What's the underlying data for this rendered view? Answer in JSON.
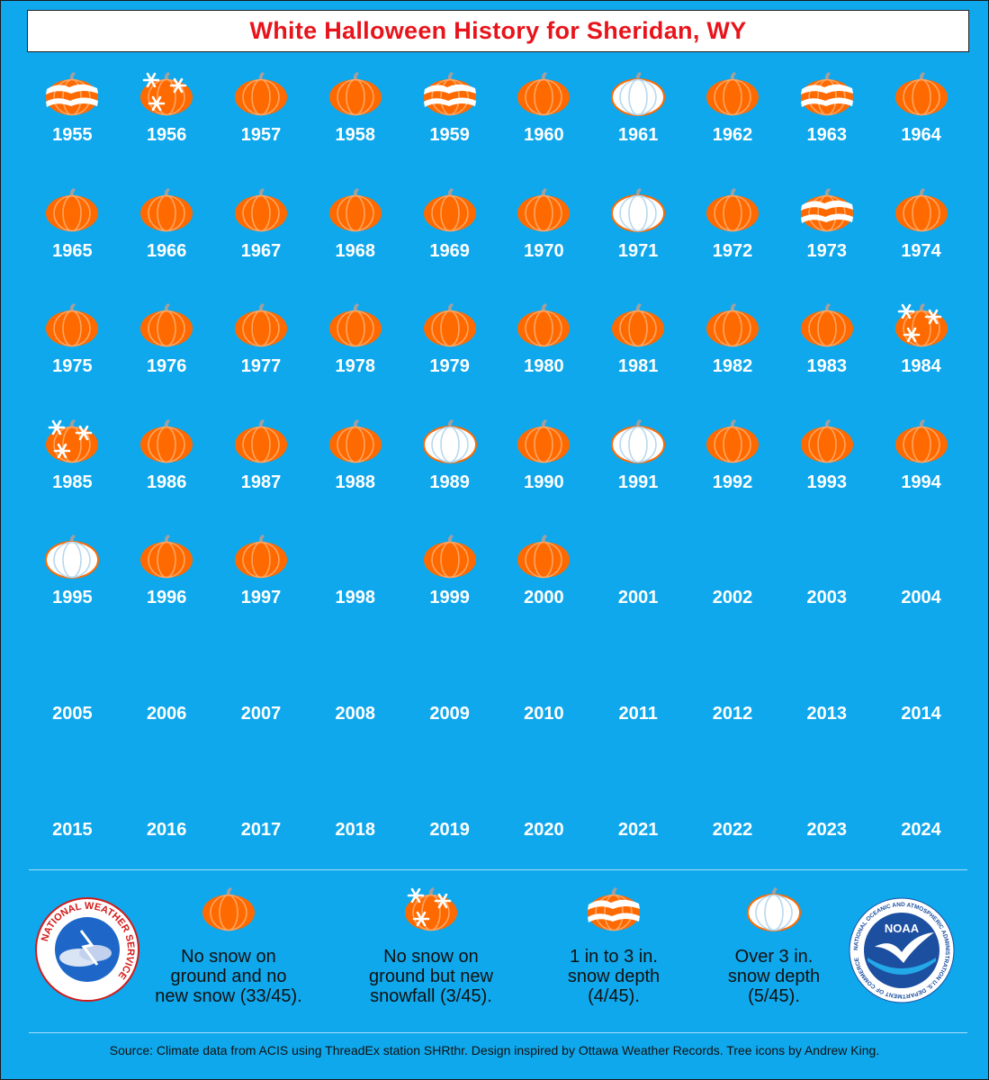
{
  "title": "White Halloween History for Sheridan, WY",
  "colors": {
    "background": "#0fa8ec",
    "title": "#e8141b",
    "pumpkin": "#ff6a00",
    "pumpkin_rib": "#ffa460",
    "stem": "#a0a0a0",
    "snow": "#ffffff"
  },
  "chart_data": {
    "type": "table",
    "title": "White Halloween History for Sheridan, WY",
    "categories": {
      "none": "No snow on ground and no new snow (33/45).",
      "new": "No snow on ground but new snowfall (3/45).",
      "light": "1 in to 3 in. snow depth (4/45).",
      "deep": "Over 3 in. snow depth (5/45)."
    },
    "counts": {
      "none": 33,
      "new": 3,
      "light": 4,
      "deep": 5,
      "total": 45
    },
    "years": [
      {
        "year": "1955",
        "category": "light"
      },
      {
        "year": "1956",
        "category": "new"
      },
      {
        "year": "1957",
        "category": "none"
      },
      {
        "year": "1958",
        "category": "none"
      },
      {
        "year": "1959",
        "category": "light"
      },
      {
        "year": "1960",
        "category": "none"
      },
      {
        "year": "1961",
        "category": "deep"
      },
      {
        "year": "1962",
        "category": "none"
      },
      {
        "year": "1963",
        "category": "light"
      },
      {
        "year": "1964",
        "category": "none"
      },
      {
        "year": "1965",
        "category": "none"
      },
      {
        "year": "1966",
        "category": "none"
      },
      {
        "year": "1967",
        "category": "none"
      },
      {
        "year": "1968",
        "category": "none"
      },
      {
        "year": "1969",
        "category": "none"
      },
      {
        "year": "1970",
        "category": "none"
      },
      {
        "year": "1971",
        "category": "deep"
      },
      {
        "year": "1972",
        "category": "none"
      },
      {
        "year": "1973",
        "category": "light"
      },
      {
        "year": "1974",
        "category": "none"
      },
      {
        "year": "1975",
        "category": "none"
      },
      {
        "year": "1976",
        "category": "none"
      },
      {
        "year": "1977",
        "category": "none"
      },
      {
        "year": "1978",
        "category": "none"
      },
      {
        "year": "1979",
        "category": "none"
      },
      {
        "year": "1980",
        "category": "none"
      },
      {
        "year": "1981",
        "category": "none"
      },
      {
        "year": "1982",
        "category": "none"
      },
      {
        "year": "1983",
        "category": "none"
      },
      {
        "year": "1984",
        "category": "new"
      },
      {
        "year": "1985",
        "category": "new"
      },
      {
        "year": "1986",
        "category": "none"
      },
      {
        "year": "1987",
        "category": "none"
      },
      {
        "year": "1988",
        "category": "none"
      },
      {
        "year": "1989",
        "category": "deep"
      },
      {
        "year": "1990",
        "category": "none"
      },
      {
        "year": "1991",
        "category": "deep"
      },
      {
        "year": "1992",
        "category": "none"
      },
      {
        "year": "1993",
        "category": "none"
      },
      {
        "year": "1994",
        "category": "none"
      },
      {
        "year": "1995",
        "category": "deep"
      },
      {
        "year": "1996",
        "category": "none"
      },
      {
        "year": "1997",
        "category": "none"
      },
      {
        "year": "1998",
        "category": null
      },
      {
        "year": "1999",
        "category": "none"
      },
      {
        "year": "2000",
        "category": "none"
      },
      {
        "year": "2001",
        "category": null
      },
      {
        "year": "2002",
        "category": null
      },
      {
        "year": "2003",
        "category": null
      },
      {
        "year": "2004",
        "category": null
      },
      {
        "year": "2005",
        "category": null
      },
      {
        "year": "2006",
        "category": null
      },
      {
        "year": "2007",
        "category": null
      },
      {
        "year": "2008",
        "category": null
      },
      {
        "year": "2009",
        "category": null
      },
      {
        "year": "2010",
        "category": null
      },
      {
        "year": "2011",
        "category": null
      },
      {
        "year": "2012",
        "category": null
      },
      {
        "year": "2013",
        "category": null
      },
      {
        "year": "2014",
        "category": null
      },
      {
        "year": "2015",
        "category": null
      },
      {
        "year": "2016",
        "category": null
      },
      {
        "year": "2017",
        "category": null
      },
      {
        "year": "2018",
        "category": null
      },
      {
        "year": "2019",
        "category": null
      },
      {
        "year": "2020",
        "category": null
      },
      {
        "year": "2021",
        "category": null
      },
      {
        "year": "2022",
        "category": null
      },
      {
        "year": "2023",
        "category": null
      },
      {
        "year": "2024",
        "category": null
      }
    ]
  },
  "legend": {
    "none": {
      "icon": "pumpkin-icon",
      "lines": [
        "No snow on",
        "ground and no",
        "new snow (33/45)."
      ]
    },
    "new": {
      "icon": "pumpkin-snowflakes-icon",
      "lines": [
        "No snow on",
        "ground but new",
        "snowfall (3/45)."
      ]
    },
    "light": {
      "icon": "pumpkin-snow-stripes-icon",
      "lines": [
        "1 in to 3 in.",
        "snow depth",
        "(4/45)."
      ]
    },
    "deep": {
      "icon": "white-pumpkin-icon",
      "lines": [
        "Over 3 in.",
        "snow depth",
        "(5/45)."
      ]
    }
  },
  "logos": {
    "nws": {
      "icon": "nws-logo",
      "text": "NATIONAL WEATHER SERVICE"
    },
    "noaa": {
      "icon": "noaa-logo",
      "center_text": "NOAA",
      "ring_text": "NATIONAL OCEANIC AND ATMOSPHERIC ADMINISTRATION U.S. DEPARTMENT OF COMMERCE"
    }
  },
  "footer": {
    "source": "Source: Climate data from ACIS using ThreadEx station SHRthr. Design inspired by Ottawa Weather Records. Tree icons by Andrew King."
  }
}
